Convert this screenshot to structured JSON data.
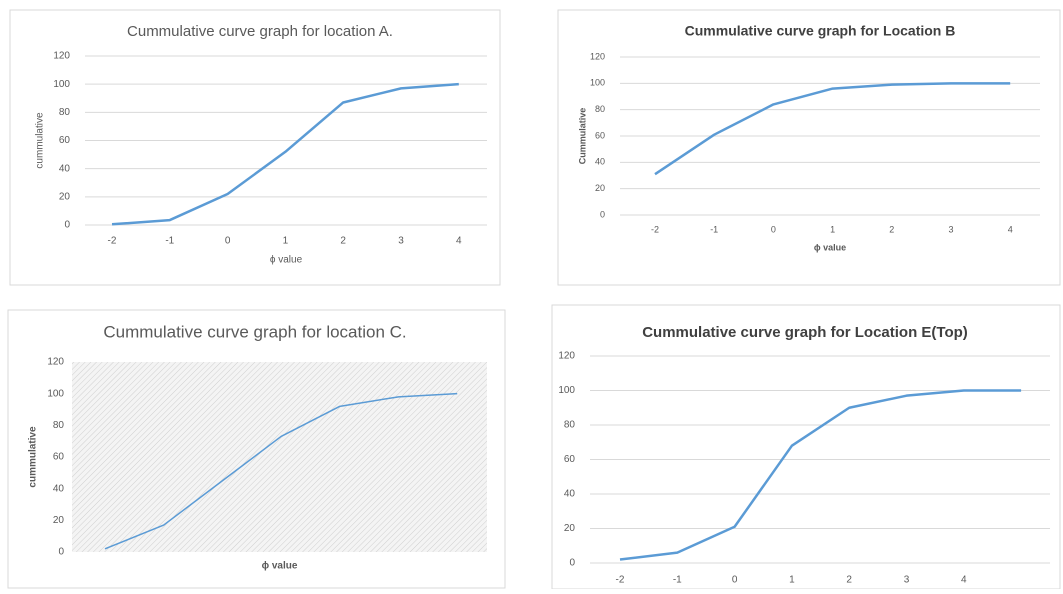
{
  "chart_data": [
    {
      "type": "line",
      "title": "Cummulative curve graph for location A.",
      "x_label": "ϕ value",
      "y_label": "cummulative",
      "categories": [
        -2,
        -1,
        0,
        1,
        2,
        3,
        4
      ],
      "values": [
        0.5,
        3.5,
        22,
        52,
        87,
        97,
        100
      ],
      "color": "#5b9bd5",
      "ylim": [
        0,
        120
      ],
      "yticks": [
        0,
        20,
        40,
        60,
        80,
        100,
        120
      ],
      "grid": true
    },
    {
      "type": "line",
      "title": "Cummulative curve graph for Location B",
      "x_label": "ϕ value",
      "y_label": "Cummulative",
      "categories": [
        -2,
        -1,
        0,
        1,
        2,
        3,
        4
      ],
      "values": [
        31,
        61,
        84,
        96,
        99,
        100,
        100
      ],
      "color": "#5b9bd5",
      "ylim": [
        0,
        120
      ],
      "yticks": [
        0,
        20,
        40,
        60,
        80,
        100,
        120
      ],
      "grid": true
    },
    {
      "type": "line",
      "title": "Cummulative curve graph for location C.",
      "x_label": "ϕ value",
      "y_label": "cummulative",
      "categories": [
        null,
        null,
        null,
        null,
        null,
        null,
        null
      ],
      "values": [
        2,
        17,
        45,
        73,
        92,
        98,
        100
      ],
      "color": "#5b9bd5",
      "ylim": [
        0,
        120
      ],
      "yticks": [
        0,
        20,
        40,
        60,
        80,
        100,
        120
      ],
      "grid": false
    },
    {
      "type": "line",
      "title": "Cummulative curve graph for Location E(Top)",
      "categories": [
        -2,
        -1,
        0,
        1,
        2,
        3,
        4,
        null
      ],
      "values": [
        2,
        6,
        21,
        68,
        90,
        97,
        100,
        100
      ],
      "color": "#5b9bd5",
      "ylim": [
        0,
        120
      ],
      "yticks": [
        0,
        20,
        40,
        60,
        80,
        100,
        120
      ],
      "grid": true
    }
  ]
}
